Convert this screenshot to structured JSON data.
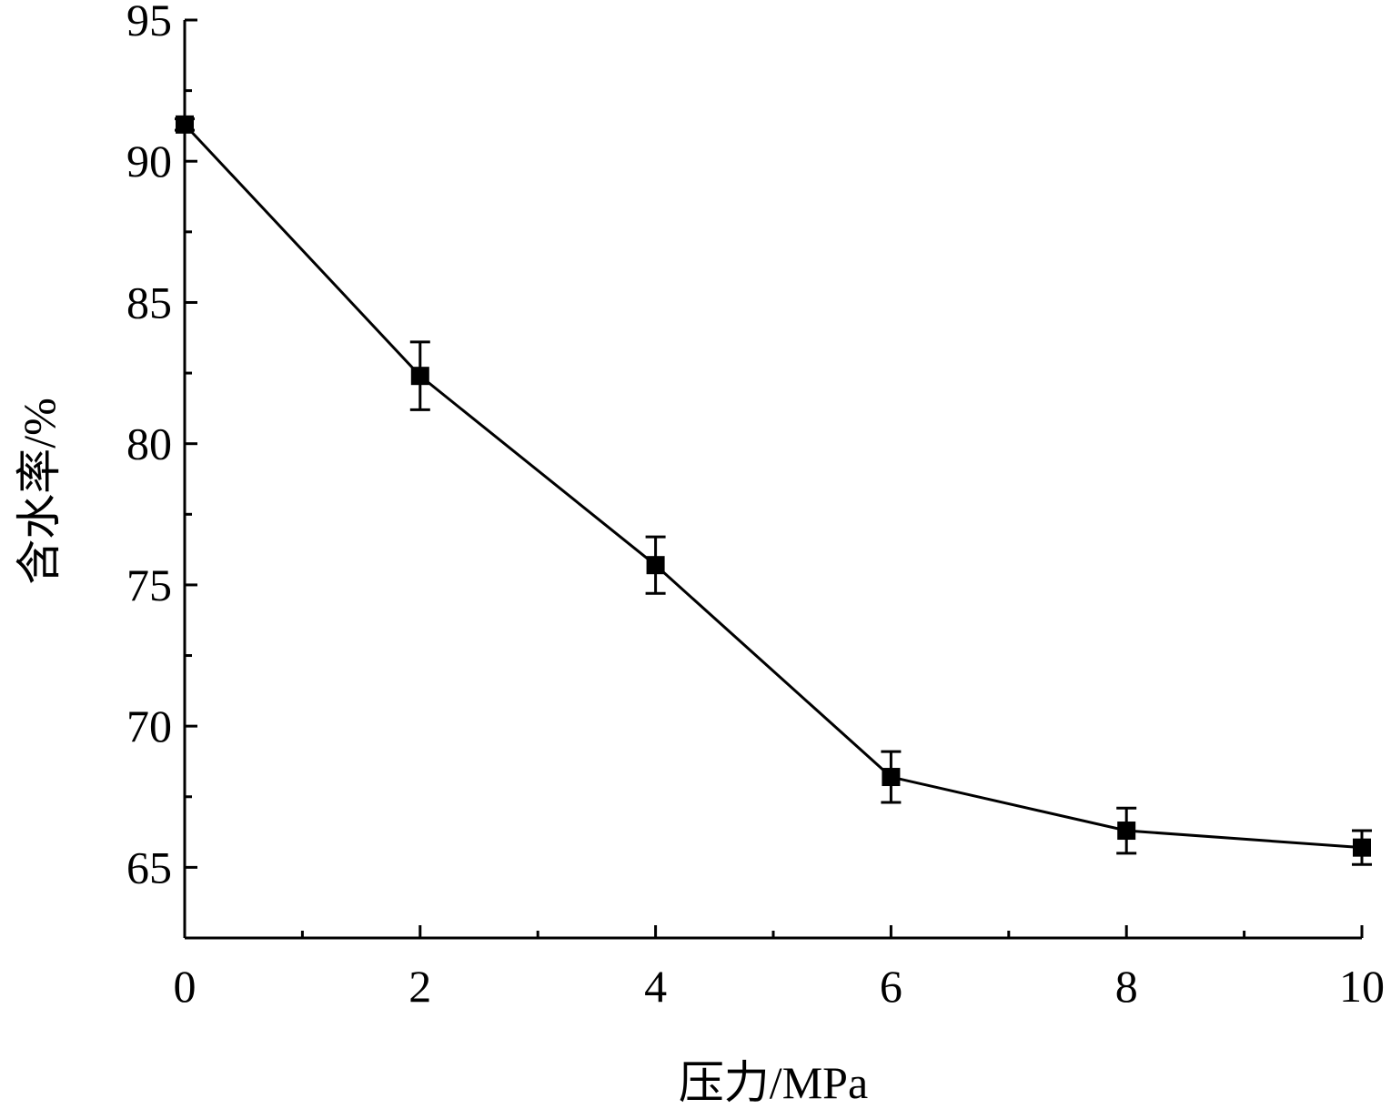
{
  "chart_data": {
    "type": "line",
    "title": "",
    "xlabel": "压力/MPa",
    "ylabel": "含水率/%",
    "xlim": [
      0,
      10
    ],
    "ylim": [
      62.5,
      95
    ],
    "x_ticks": [
      0,
      2,
      4,
      6,
      8,
      10
    ],
    "x_tick_labels": [
      "0",
      "2",
      "4",
      "6",
      "8",
      "10"
    ],
    "y_ticks": [
      65,
      70,
      75,
      80,
      85,
      90,
      95
    ],
    "y_tick_labels": [
      "65",
      "70",
      "75",
      "80",
      "85",
      "90",
      "95"
    ],
    "grid": false,
    "legend": "none",
    "series": [
      {
        "marker": "square",
        "color": "#000000",
        "x": [
          0,
          2,
          4,
          6,
          8,
          10
        ],
        "y": [
          91.3,
          82.4,
          75.7,
          68.2,
          66.3,
          65.7
        ],
        "error": [
          0.2,
          1.2,
          1.0,
          0.9,
          0.8,
          0.6
        ]
      }
    ]
  }
}
